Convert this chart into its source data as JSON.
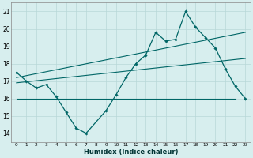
{
  "title": "",
  "xlabel": "Humidex (Indice chaleur)",
  "bg_color": "#d7eeee",
  "line_color": "#006666",
  "grid_color": "#b8d8d8",
  "ylim": [
    13.5,
    21.5
  ],
  "xlim": [
    -0.5,
    23.5
  ],
  "yticks": [
    14,
    15,
    16,
    17,
    18,
    19,
    20,
    21
  ],
  "xticks": [
    0,
    1,
    2,
    3,
    4,
    5,
    6,
    7,
    8,
    9,
    10,
    11,
    12,
    13,
    14,
    15,
    16,
    17,
    18,
    19,
    20,
    21,
    22,
    23
  ],
  "xtick_labels": [
    "0",
    "1",
    "2",
    "3",
    "4",
    "5",
    "6",
    "7",
    "8",
    "9",
    "10",
    "11",
    "12",
    "13",
    "14",
    "15",
    "16",
    "17",
    "18",
    "19",
    "20",
    "21",
    "22",
    "23"
  ],
  "main_x": [
    0,
    1,
    2,
    3,
    4,
    5,
    6,
    7,
    9,
    10,
    11,
    12,
    13,
    14,
    15,
    16,
    17,
    18,
    19,
    20,
    21,
    22,
    23
  ],
  "main_y": [
    17.5,
    17.0,
    16.6,
    16.8,
    16.1,
    15.2,
    14.3,
    14.0,
    15.3,
    16.2,
    17.2,
    18.0,
    18.5,
    19.8,
    19.3,
    19.4,
    21.0,
    20.1,
    19.5,
    18.9,
    17.7,
    16.7,
    16.0
  ],
  "trend1_x": [
    0,
    23
  ],
  "trend1_y": [
    17.2,
    19.8
  ],
  "trend2_x": [
    0,
    23
  ],
  "trend2_y": [
    16.9,
    18.3
  ],
  "hline_y": 16.0,
  "hline_x_start": 0,
  "hline_x_end": 22
}
